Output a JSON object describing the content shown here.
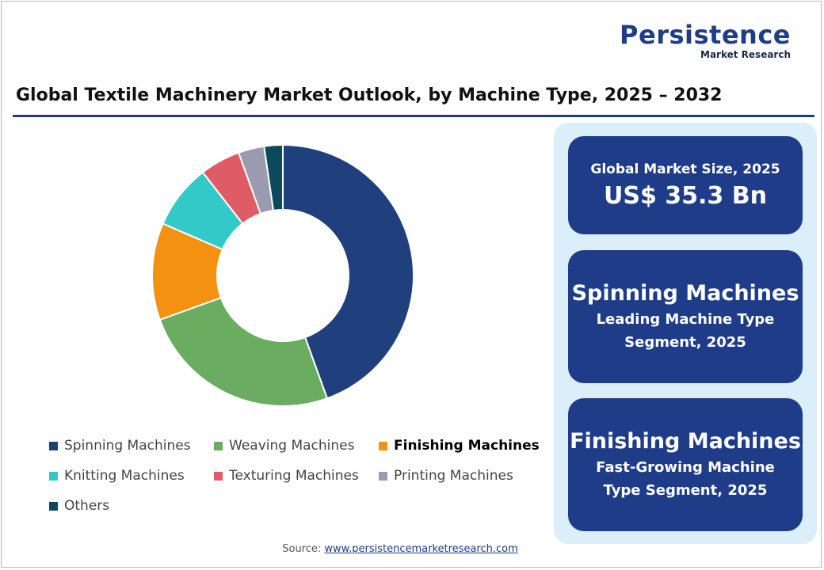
{
  "logo": {
    "main": "Persistence",
    "sub": "Market Research"
  },
  "title": "Global Textile Machinery Market Outlook, by Machine Type, 2025 – 2032",
  "chart_data": {
    "type": "pie",
    "style": "donut",
    "legend_position": "bottom",
    "categories": [
      "Spinning Machines",
      "Weaving Machines",
      "Finishing Machines",
      "Knitting Machines",
      "Texturing Machines",
      "Printing Machines",
      "Others"
    ],
    "values": [
      44.5,
      25.0,
      12.0,
      8.0,
      5.0,
      3.2,
      2.3
    ],
    "colors": [
      "#203f7d",
      "#6aad61",
      "#f59110",
      "#33c9c9",
      "#e05c64",
      "#9b9bb0",
      "#0b4a5c"
    ]
  },
  "cards": {
    "market_size": {
      "label": "Global Market Size, 2025",
      "value": "US$ 35.3 Bn"
    },
    "leading": {
      "name": "Spinning Machines",
      "line1": "Leading Machine Type",
      "line2": "Segment, 2025"
    },
    "fastest": {
      "name": "Finishing Machines",
      "line1": "Fast-Growing Machine",
      "line2": "Type Segment, 2025"
    }
  },
  "source": {
    "label": "Source:",
    "link": "www.persistencemarketresearch.com"
  }
}
